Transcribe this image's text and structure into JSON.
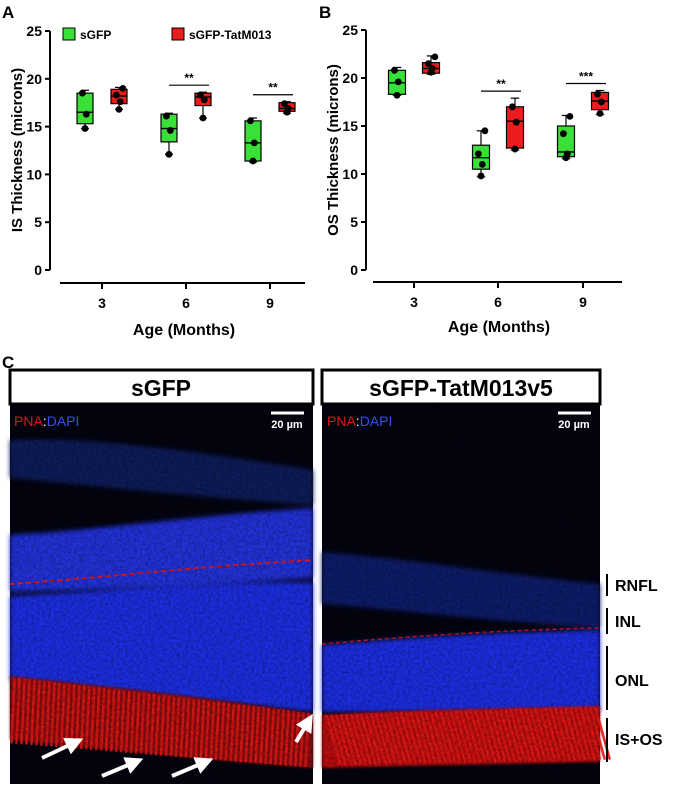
{
  "figure": {
    "panel_a_label": "A",
    "panel_b_label": "B",
    "panel_c_label": "C"
  },
  "colors": {
    "sgfp": "#38e038",
    "tat": "#ee1c1c",
    "axis": "#000000",
    "pna": "#e01818",
    "dapi": "#1c34c8"
  },
  "chart_data": [
    {
      "type": "box",
      "panel": "A",
      "ylabel": "IS Thickness (microns)",
      "xlabel": "Age (Months)",
      "categories": [
        "3",
        "6",
        "9"
      ],
      "ylim": [
        0,
        25
      ],
      "yticks": [
        "0",
        "5",
        "10",
        "15",
        "20",
        "25"
      ],
      "legend": [
        "sGFP",
        "sGFP-TatM013"
      ],
      "series": [
        {
          "name": "sGFP",
          "boxes": [
            {
              "min": 14.8,
              "q1": 15.3,
              "median": 16.5,
              "q3": 18.5,
              "max": 18.8,
              "points": [
                14.8,
                16.3,
                18.5
              ]
            },
            {
              "min": 12.1,
              "q1": 13.4,
              "median": 14.8,
              "q3": 16.3,
              "max": 16.4,
              "points": [
                12.1,
                14.6,
                16.1
              ]
            },
            {
              "min": 11.3,
              "q1": 11.4,
              "median": 13.3,
              "q3": 15.6,
              "max": 15.9,
              "points": [
                11.4,
                13.3,
                15.6
              ]
            }
          ]
        },
        {
          "name": "sGFP-TatM013",
          "boxes": [
            {
              "min": 16.8,
              "q1": 17.4,
              "median": 18.2,
              "q3": 18.9,
              "max": 19.1,
              "points": [
                16.8,
                17.6,
                18.3,
                19.0
              ]
            },
            {
              "min": 15.9,
              "q1": 17.2,
              "median": 18.1,
              "q3": 18.5,
              "max": 18.6,
              "points": [
                15.9,
                17.8,
                18.3
              ]
            },
            {
              "min": 16.4,
              "q1": 16.6,
              "median": 16.9,
              "q3": 17.5,
              "max": 17.6,
              "points": [
                16.5,
                16.9,
                17.4
              ]
            }
          ]
        }
      ],
      "significance": [
        {
          "category": "6",
          "label": "**"
        },
        {
          "category": "9",
          "label": "**"
        }
      ]
    },
    {
      "type": "box",
      "panel": "B",
      "ylabel": "OS Thickness (microns)",
      "xlabel": "Age (Months)",
      "categories": [
        "3",
        "6",
        "9"
      ],
      "ylim": [
        0,
        25
      ],
      "yticks": [
        "0",
        "5",
        "10",
        "15",
        "20",
        "25"
      ],
      "series": [
        {
          "name": "sGFP",
          "boxes": [
            {
              "min": 18.2,
              "q1": 18.3,
              "median": 19.5,
              "q3": 20.8,
              "max": 21.1,
              "points": [
                18.2,
                19.6,
                20.8
              ]
            },
            {
              "min": 9.7,
              "q1": 10.5,
              "median": 11.7,
              "q3": 13.0,
              "max": 14.5,
              "points": [
                9.8,
                11.0,
                12.1,
                14.5
              ]
            },
            {
              "min": 11.6,
              "q1": 11.8,
              "median": 12.3,
              "q3": 15.0,
              "max": 16.1,
              "points": [
                11.7,
                12.1,
                14.2,
                16.0
              ]
            }
          ]
        },
        {
          "name": "sGFP-TatM013",
          "boxes": [
            {
              "min": 20.4,
              "q1": 20.5,
              "median": 21.0,
              "q3": 21.6,
              "max": 22.3,
              "points": [
                20.6,
                21.0,
                21.5,
                22.2
              ]
            },
            {
              "min": 12.5,
              "q1": 12.7,
              "median": 15.5,
              "q3": 17.0,
              "max": 17.9,
              "points": [
                12.6,
                15.4,
                17.0
              ]
            },
            {
              "min": 16.2,
              "q1": 16.7,
              "median": 17.6,
              "q3": 18.5,
              "max": 18.7,
              "points": [
                16.3,
                17.5,
                18.3
              ]
            }
          ]
        }
      ],
      "significance": [
        {
          "category": "6",
          "label": "**"
        },
        {
          "category": "9",
          "label": "***"
        }
      ]
    }
  ],
  "micrographs": {
    "left": {
      "title": "sGFP",
      "stain_red": "PNA",
      "stain_sep": ":",
      "stain_blue": "DAPI",
      "scale": "20 µm"
    },
    "right": {
      "title": "sGFP-TatM013v5",
      "stain_red": "PNA",
      "stain_sep": ":",
      "stain_blue": "DAPI",
      "scale": "20 µm"
    },
    "layers": [
      "RNFL",
      "INL",
      "ONL",
      "IS+OS"
    ]
  }
}
